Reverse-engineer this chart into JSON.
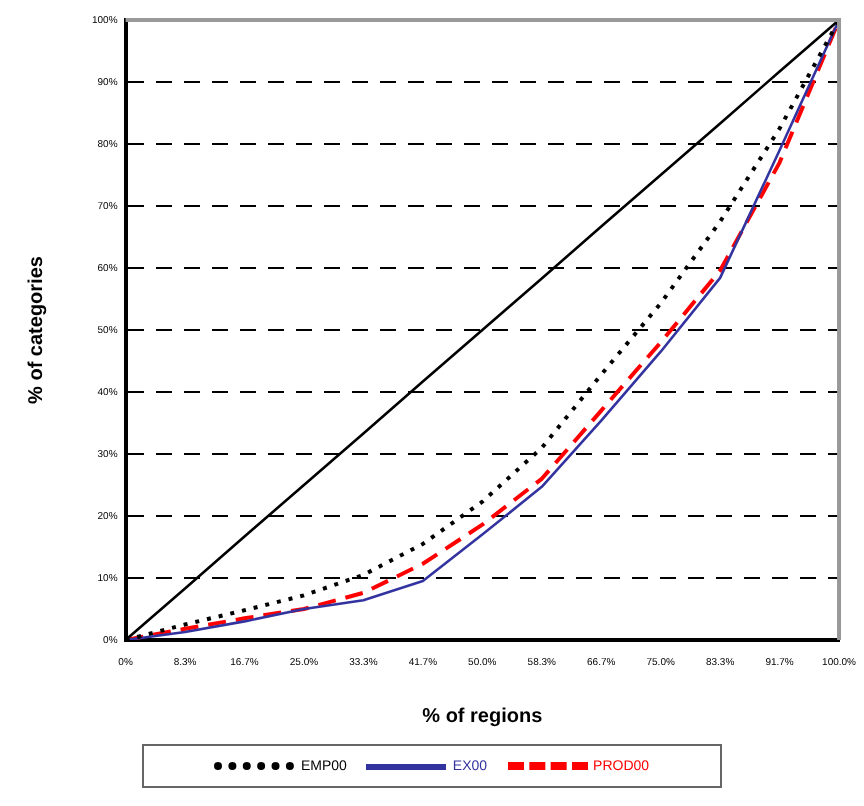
{
  "chart_data": {
    "type": "line",
    "xlabel": "% of regions",
    "ylabel": "% of categories",
    "categories": [
      "0%",
      "8.3%",
      "16.7%",
      "25.0%",
      "33.3%",
      "41.7%",
      "50.0%",
      "58.3%",
      "66.7%",
      "75.0%",
      "83.3%",
      "91.7%",
      "100.0%"
    ],
    "series": [
      {
        "color": "#000000",
        "line_style": "solid",
        "values": [
          0,
          8.3,
          16.7,
          25,
          33.3,
          41.7,
          50,
          58.3,
          66.7,
          75,
          83.3,
          91.7,
          100
        ]
      },
      {
        "name": "EMP00",
        "color": "#000000",
        "line_style": "dotted",
        "values": [
          0,
          2.5,
          4.8,
          7.2,
          10.5,
          15.5,
          22.3,
          31,
          42.8,
          54.3,
          67.5,
          82.5,
          100
        ]
      },
      {
        "name": "EX00",
        "color": "#3333a0",
        "line_style": "solid",
        "values": [
          0,
          1.3,
          3,
          5,
          6.4,
          9.5,
          17,
          24.7,
          35.4,
          46.5,
          58.4,
          79,
          100
        ]
      },
      {
        "name": "PROD00",
        "color": "#ff0000",
        "line_style": "dashed",
        "values": [
          0,
          1.8,
          3.5,
          5,
          7.6,
          12.3,
          18.6,
          26,
          37,
          48,
          59.6,
          77,
          100
        ]
      }
    ],
    "ylim": [
      0,
      100
    ],
    "yticks": [
      {
        "value": 0,
        "label": "0%"
      },
      {
        "value": 10,
        "label": "10%"
      },
      {
        "value": 20,
        "label": "20%"
      },
      {
        "value": 30,
        "label": "30%"
      },
      {
        "value": 40,
        "label": "40%"
      },
      {
        "value": 50,
        "label": "50%"
      },
      {
        "value": 60,
        "label": "60%"
      },
      {
        "value": 70,
        "label": "70%"
      },
      {
        "value": 80,
        "label": "80%"
      },
      {
        "value": 90,
        "label": "90%"
      },
      {
        "value": 100,
        "label": "100%"
      }
    ],
    "grid": "y",
    "legend": "bottom",
    "marker": "none"
  }
}
